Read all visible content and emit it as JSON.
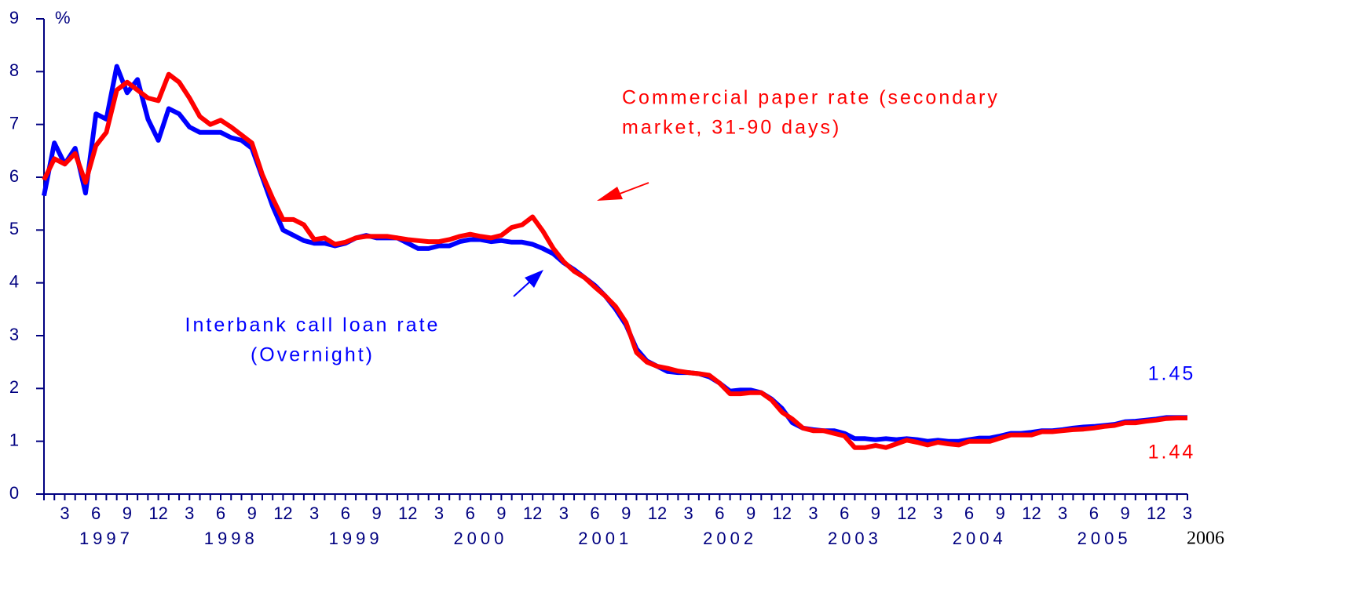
{
  "chart_data": {
    "type": "line",
    "y_unit": "%",
    "ylim": [
      0,
      9
    ],
    "yticks": [
      0,
      1,
      2,
      3,
      4,
      5,
      6,
      7,
      8,
      9
    ],
    "categories": [
      null,
      null,
      "3",
      null,
      null,
      "6",
      null,
      null,
      "9",
      null,
      null,
      "12",
      null,
      null,
      "3",
      null,
      null,
      "6",
      null,
      null,
      "9",
      null,
      null,
      "12",
      null,
      null,
      "3",
      null,
      null,
      "6",
      null,
      null,
      "9",
      null,
      null,
      "12",
      null,
      null,
      "3",
      null,
      null,
      "6",
      null,
      null,
      "9",
      null,
      null,
      "12",
      null,
      null,
      "3",
      null,
      null,
      "6",
      null,
      null,
      "9",
      null,
      null,
      "12",
      null,
      null,
      "3",
      null,
      null,
      "6",
      null,
      null,
      "9",
      null,
      null,
      "12",
      null,
      null,
      "3",
      null,
      null,
      "6",
      null,
      null,
      "9",
      null,
      null,
      "12",
      null,
      null,
      "3",
      null,
      null,
      "6",
      null,
      null,
      "9",
      null,
      null,
      "12",
      null,
      null,
      "3",
      null,
      null,
      "6",
      null,
      null,
      "9",
      null,
      null,
      "12",
      null,
      null,
      "3"
    ],
    "years": [
      "1997",
      "1998",
      "1999",
      "2000",
      "2001",
      "2002",
      "2003",
      "2004",
      "2005",
      "2006"
    ],
    "series": [
      {
        "name": "Interbank call loan rate (Overnight)",
        "label_lines": [
          "Interbank call loan rate",
          "(Overnight)"
        ],
        "color": "#0000ff",
        "values": [
          5.65,
          6.65,
          6.25,
          6.55,
          5.7,
          7.2,
          7.1,
          8.1,
          7.6,
          7.85,
          7.1,
          6.7,
          7.3,
          7.2,
          6.95,
          6.85,
          6.85,
          6.85,
          6.75,
          6.7,
          6.55,
          6.0,
          5.45,
          5.0,
          4.9,
          4.8,
          4.75,
          4.75,
          4.7,
          4.75,
          4.85,
          4.9,
          4.85,
          4.85,
          4.85,
          4.75,
          4.65,
          4.65,
          4.7,
          4.7,
          4.78,
          4.82,
          4.82,
          4.78,
          4.8,
          4.77,
          4.77,
          4.73,
          4.65,
          4.55,
          4.38,
          4.25,
          4.1,
          3.95,
          3.75,
          3.5,
          3.2,
          2.75,
          2.52,
          2.42,
          2.32,
          2.3,
          2.3,
          2.28,
          2.22,
          2.1,
          1.95,
          1.97,
          1.97,
          1.92,
          1.8,
          1.62,
          1.35,
          1.25,
          1.22,
          1.2,
          1.2,
          1.15,
          1.05,
          1.05,
          1.03,
          1.05,
          1.03,
          1.05,
          1.03,
          1.0,
          1.02,
          1.0,
          1.0,
          1.03,
          1.06,
          1.06,
          1.1,
          1.15,
          1.15,
          1.17,
          1.2,
          1.2,
          1.22,
          1.25,
          1.27,
          1.28,
          1.3,
          1.32,
          1.37,
          1.38,
          1.4,
          1.42,
          1.45,
          1.45,
          1.45
        ]
      },
      {
        "name": "Commercial paper rate (secondary market, 31-90 days)",
        "label_lines": [
          "Commercial paper rate (secondary",
          "market, 31-90 days)"
        ],
        "color": "#ff0000",
        "values": [
          5.95,
          6.35,
          6.25,
          6.45,
          5.9,
          6.6,
          6.85,
          7.65,
          7.8,
          7.65,
          7.5,
          7.45,
          7.95,
          7.8,
          7.5,
          7.15,
          7.0,
          7.08,
          6.95,
          6.8,
          6.65,
          6.05,
          5.6,
          5.2,
          5.2,
          5.1,
          4.82,
          4.85,
          4.73,
          4.77,
          4.85,
          4.88,
          4.88,
          4.88,
          4.85,
          4.82,
          4.8,
          4.78,
          4.78,
          4.82,
          4.88,
          4.92,
          4.88,
          4.85,
          4.9,
          5.05,
          5.1,
          5.25,
          4.98,
          4.65,
          4.4,
          4.22,
          4.1,
          3.92,
          3.75,
          3.55,
          3.25,
          2.68,
          2.5,
          2.42,
          2.38,
          2.33,
          2.3,
          2.28,
          2.25,
          2.1,
          1.9,
          1.9,
          1.92,
          1.92,
          1.78,
          1.55,
          1.42,
          1.25,
          1.2,
          1.2,
          1.15,
          1.1,
          0.88,
          0.88,
          0.92,
          0.88,
          0.95,
          1.02,
          0.98,
          0.93,
          0.98,
          0.95,
          0.93,
          1.0,
          1.0,
          1.0,
          1.06,
          1.12,
          1.12,
          1.12,
          1.18,
          1.18,
          1.2,
          1.22,
          1.23,
          1.25,
          1.28,
          1.3,
          1.35,
          1.35,
          1.38,
          1.4,
          1.43,
          1.44,
          1.44
        ]
      }
    ]
  }
}
